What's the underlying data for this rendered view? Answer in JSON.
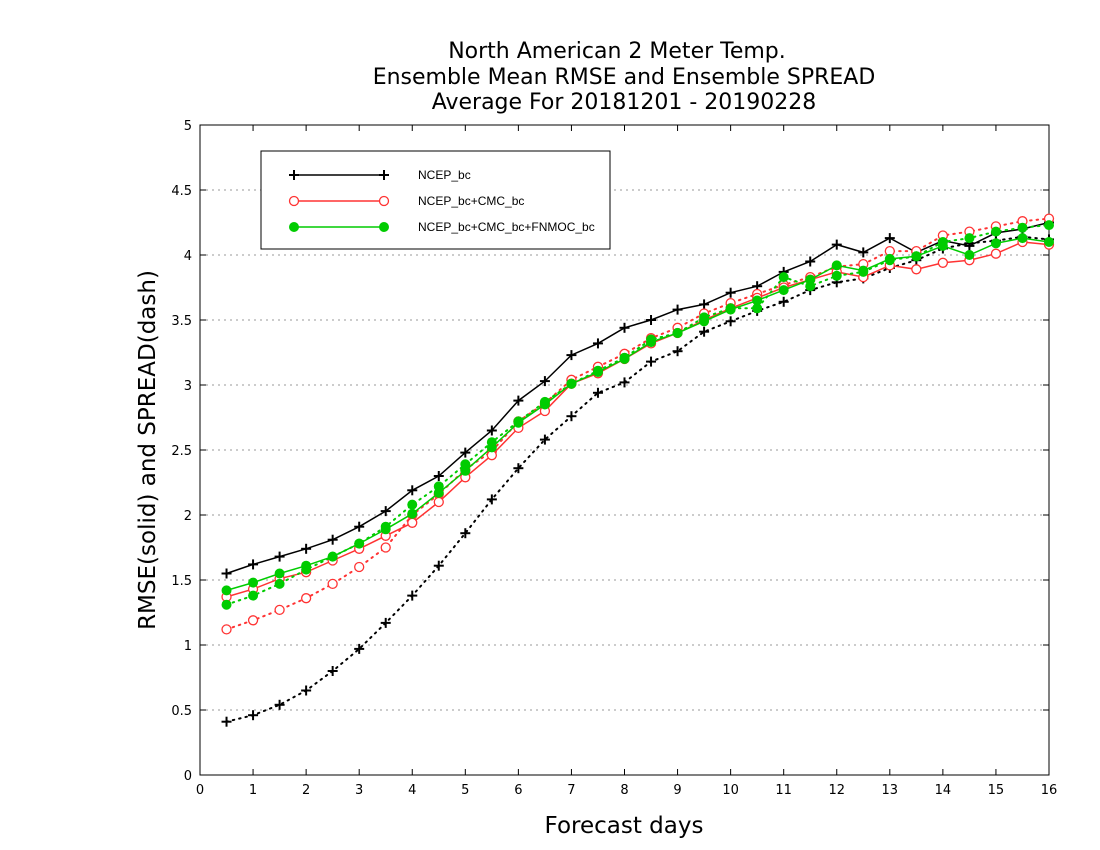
{
  "chart_data": {
    "type": "line",
    "title_lines": [
      "North American 2 Meter Temp.",
      "Ensemble Mean RMSE and Ensemble SPREAD",
      "Average For 20181201 - 20190228"
    ],
    "xlabel": "Forecast days",
    "ylabel": "RMSE(solid) and SPREAD(dash)",
    "xlim": [
      0,
      16
    ],
    "ylim": [
      0,
      5
    ],
    "x_ticks": [
      0,
      1,
      2,
      3,
      4,
      5,
      6,
      7,
      8,
      9,
      10,
      11,
      12,
      13,
      14,
      15,
      16
    ],
    "y_ticks": [
      0,
      0.5,
      1,
      1.5,
      2,
      2.5,
      3,
      3.5,
      4,
      4.5,
      5
    ],
    "grid": "horizontal dotted",
    "legend_position": "top-left",
    "x": [
      0.5,
      1.0,
      1.5,
      2.0,
      2.5,
      3.0,
      3.5,
      4.0,
      4.5,
      5.0,
      5.5,
      6.0,
      6.5,
      7.0,
      7.5,
      8.0,
      8.5,
      9.0,
      9.5,
      10.0,
      10.5,
      11.0,
      11.5,
      12.0,
      12.5,
      13.0,
      13.5,
      14.0,
      14.5,
      15.0,
      15.5,
      16.0
    ],
    "series": [
      {
        "name": "NCEP_bc",
        "color": "#000000",
        "marker": "plus",
        "rmse": [
          1.55,
          1.62,
          1.68,
          1.74,
          1.81,
          1.91,
          2.03,
          2.19,
          2.3,
          2.48,
          2.65,
          2.88,
          3.03,
          3.23,
          3.32,
          3.44,
          3.5,
          3.58,
          3.62,
          3.71,
          3.76,
          3.87,
          3.95,
          4.08,
          4.02,
          4.13,
          4.02,
          4.11,
          4.07,
          4.17,
          4.2,
          4.25
        ],
        "spread": [
          0.41,
          0.46,
          0.54,
          0.65,
          0.8,
          0.97,
          1.17,
          1.38,
          1.61,
          1.86,
          2.12,
          2.36,
          2.58,
          2.76,
          2.94,
          3.02,
          3.18,
          3.26,
          3.41,
          3.49,
          3.57,
          3.64,
          3.73,
          3.79,
          3.82,
          3.9,
          3.96,
          4.05,
          4.09,
          4.11,
          4.14,
          4.12
        ]
      },
      {
        "name": "NCEP_bc+CMC_bc",
        "color": "#ff3333",
        "marker": "open-circle",
        "rmse": [
          1.37,
          1.43,
          1.51,
          1.56,
          1.65,
          1.74,
          1.84,
          1.94,
          2.1,
          2.29,
          2.46,
          2.67,
          2.8,
          3.01,
          3.09,
          3.2,
          3.32,
          3.4,
          3.5,
          3.59,
          3.67,
          3.75,
          3.81,
          3.87,
          3.83,
          3.92,
          3.89,
          3.94,
          3.96,
          4.01,
          4.1,
          4.08
        ],
        "spread": [
          1.12,
          1.19,
          1.27,
          1.36,
          1.47,
          1.6,
          1.75,
          2.0,
          2.16,
          2.35,
          2.49,
          2.72,
          2.86,
          3.04,
          3.14,
          3.24,
          3.36,
          3.44,
          3.55,
          3.63,
          3.7,
          3.77,
          3.83,
          3.91,
          3.93,
          4.03,
          4.03,
          4.15,
          4.18,
          4.22,
          4.26,
          4.28
        ]
      },
      {
        "name": "NCEP_bc+CMC_bc+FNMOC_bc",
        "color": "#00cc00",
        "marker": "filled-circle",
        "rmse": [
          1.42,
          1.48,
          1.55,
          1.61,
          1.68,
          1.78,
          1.89,
          2.01,
          2.17,
          2.34,
          2.52,
          2.71,
          2.85,
          3.01,
          3.1,
          3.2,
          3.33,
          3.4,
          3.49,
          3.58,
          3.65,
          3.73,
          3.81,
          3.92,
          3.88,
          3.97,
          3.99,
          4.07,
          4.0,
          4.09,
          4.13,
          4.1
        ],
        "spread": [
          1.31,
          1.38,
          1.47,
          1.58,
          1.68,
          1.78,
          1.91,
          2.08,
          2.22,
          2.39,
          2.56,
          2.72,
          2.87,
          3.01,
          3.11,
          3.21,
          3.35,
          3.4,
          3.52,
          3.59,
          3.59,
          3.83,
          3.76,
          3.84,
          3.87,
          3.96,
          3.99,
          4.1,
          4.13,
          4.18,
          4.21,
          4.23
        ]
      }
    ]
  }
}
